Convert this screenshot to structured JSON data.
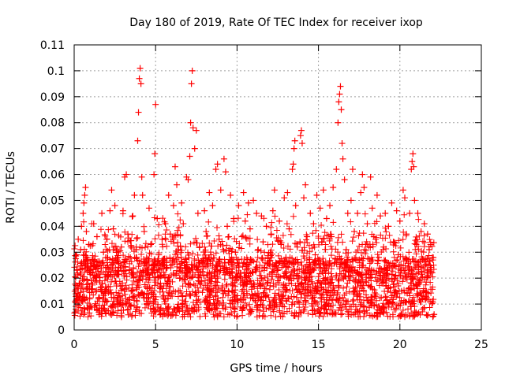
{
  "chart_data": {
    "type": "scatter",
    "title": "Day 180 of 2019, Rate Of TEC Index for receiver ixop",
    "xlabel": "GPS time / hours",
    "ylabel": "ROTI / TECUs",
    "xlim": [
      0,
      25
    ],
    "ylim": [
      0,
      0.11
    ],
    "x_ticks": [
      0,
      5,
      10,
      15,
      20,
      25
    ],
    "y_ticks": [
      0,
      0.01,
      0.02,
      0.03,
      0.04,
      0.05,
      0.06,
      0.07,
      0.08,
      0.09,
      0.1,
      0.11
    ],
    "grid": true,
    "legend": "none",
    "marker": "plus",
    "series_color": "#ff0000",
    "points": [
      [
        0.1,
        0.008
      ],
      [
        0.15,
        0.029
      ],
      [
        0.2,
        0.022
      ],
      [
        0.25,
        0.035
      ],
      [
        0.3,
        0.013
      ],
      [
        0.35,
        0.018
      ],
      [
        0.4,
        0.031
      ],
      [
        0.45,
        0.04
      ],
      [
        0.5,
        0.011
      ],
      [
        0.55,
        0.045
      ],
      [
        0.6,
        0.049
      ],
      [
        0.65,
        0.052
      ],
      [
        0.7,
        0.055
      ],
      [
        0.75,
        0.038
      ],
      [
        0.8,
        0.016
      ],
      [
        0.85,
        0.024
      ],
      [
        0.9,
        0.033
      ],
      [
        1.0,
        0.009
      ],
      [
        1.1,
        0.027
      ],
      [
        1.2,
        0.041
      ],
      [
        1.3,
        0.019
      ],
      [
        1.4,
        0.036
      ],
      [
        1.5,
        0.012
      ],
      [
        1.6,
        0.025
      ],
      [
        1.7,
        0.045
      ],
      [
        1.8,
        0.03
      ],
      [
        1.9,
        0.014
      ],
      [
        2.0,
        0.035
      ],
      [
        2.1,
        0.021
      ],
      [
        2.2,
        0.046
      ],
      [
        2.3,
        0.054
      ],
      [
        2.4,
        0.039
      ],
      [
        2.5,
        0.048
      ],
      [
        2.6,
        0.017
      ],
      [
        2.7,
        0.028
      ],
      [
        2.8,
        0.01
      ],
      [
        2.9,
        0.032
      ],
      [
        3.0,
        0.046
      ],
      [
        3.1,
        0.059
      ],
      [
        3.2,
        0.06
      ],
      [
        3.3,
        0.037
      ],
      [
        3.4,
        0.023
      ],
      [
        3.5,
        0.015
      ],
      [
        3.6,
        0.044
      ],
      [
        3.7,
        0.052
      ],
      [
        3.8,
        0.031
      ],
      [
        3.9,
        0.073
      ],
      [
        3.95,
        0.084
      ],
      [
        4.0,
        0.097
      ],
      [
        4.05,
        0.101
      ],
      [
        4.1,
        0.095
      ],
      [
        4.15,
        0.059
      ],
      [
        4.2,
        0.052
      ],
      [
        4.3,
        0.038
      ],
      [
        4.4,
        0.026
      ],
      [
        4.5,
        0.016
      ],
      [
        4.6,
        0.047
      ],
      [
        4.7,
        0.033
      ],
      [
        4.8,
        0.022
      ],
      [
        4.9,
        0.06
      ],
      [
        4.95,
        0.068
      ],
      [
        5.0,
        0.087
      ],
      [
        5.1,
        0.043
      ],
      [
        5.2,
        0.029
      ],
      [
        5.3,
        0.018
      ],
      [
        5.4,
        0.035
      ],
      [
        5.5,
        0.012
      ],
      [
        5.6,
        0.041
      ],
      [
        5.7,
        0.024
      ],
      [
        5.8,
        0.052
      ],
      [
        5.9,
        0.037
      ],
      [
        6.0,
        0.014
      ],
      [
        6.1,
        0.048
      ],
      [
        6.2,
        0.063
      ],
      [
        6.3,
        0.056
      ],
      [
        6.4,
        0.031
      ],
      [
        6.5,
        0.02
      ],
      [
        6.6,
        0.049
      ],
      [
        6.7,
        0.041
      ],
      [
        6.8,
        0.011
      ],
      [
        6.9,
        0.059
      ],
      [
        7.0,
        0.058
      ],
      [
        7.1,
        0.067
      ],
      [
        7.15,
        0.08
      ],
      [
        7.2,
        0.095
      ],
      [
        7.25,
        0.1
      ],
      [
        7.3,
        0.078
      ],
      [
        7.4,
        0.07
      ],
      [
        7.5,
        0.077
      ],
      [
        7.6,
        0.045
      ],
      [
        7.7,
        0.032
      ],
      [
        7.8,
        0.019
      ],
      [
        7.9,
        0.027
      ],
      [
        8.0,
        0.046
      ],
      [
        8.1,
        0.038
      ],
      [
        8.2,
        0.013
      ],
      [
        8.3,
        0.053
      ],
      [
        8.4,
        0.029
      ],
      [
        8.5,
        0.048
      ],
      [
        8.6,
        0.021
      ],
      [
        8.7,
        0.062
      ],
      [
        8.8,
        0.064
      ],
      [
        8.9,
        0.035
      ],
      [
        9.0,
        0.054
      ],
      [
        9.1,
        0.017
      ],
      [
        9.2,
        0.066
      ],
      [
        9.3,
        0.061
      ],
      [
        9.4,
        0.04
      ],
      [
        9.5,
        0.026
      ],
      [
        9.6,
        0.052
      ],
      [
        9.7,
        0.015
      ],
      [
        9.8,
        0.043
      ],
      [
        9.9,
        0.03
      ],
      [
        10.0,
        0.012
      ],
      [
        10.1,
        0.048
      ],
      [
        10.2,
        0.022
      ],
      [
        10.3,
        0.036
      ],
      [
        10.4,
        0.053
      ],
      [
        10.5,
        0.042
      ],
      [
        10.6,
        0.018
      ],
      [
        10.7,
        0.049
      ],
      [
        10.8,
        0.039
      ],
      [
        10.9,
        0.027
      ],
      [
        11.0,
        0.05
      ],
      [
        11.1,
        0.014
      ],
      [
        11.2,
        0.045
      ],
      [
        11.3,
        0.031
      ],
      [
        11.4,
        0.021
      ],
      [
        11.5,
        0.044
      ],
      [
        11.6,
        0.034
      ],
      [
        11.7,
        0.016
      ],
      [
        11.8,
        0.04
      ],
      [
        11.9,
        0.028
      ],
      [
        12.0,
        0.011
      ],
      [
        12.1,
        0.037
      ],
      [
        12.2,
        0.046
      ],
      [
        12.3,
        0.054
      ],
      [
        12.4,
        0.025
      ],
      [
        12.5,
        0.019
      ],
      [
        12.6,
        0.042
      ],
      [
        12.7,
        0.033
      ],
      [
        12.8,
        0.013
      ],
      [
        12.9,
        0.051
      ],
      [
        13.0,
        0.028
      ],
      [
        13.1,
        0.053
      ],
      [
        13.2,
        0.039
      ],
      [
        13.3,
        0.021
      ],
      [
        13.4,
        0.062
      ],
      [
        13.45,
        0.064
      ],
      [
        13.5,
        0.07
      ],
      [
        13.55,
        0.073
      ],
      [
        13.6,
        0.048
      ],
      [
        13.7,
        0.032
      ],
      [
        13.8,
        0.017
      ],
      [
        13.9,
        0.075
      ],
      [
        13.95,
        0.077
      ],
      [
        14.0,
        0.072
      ],
      [
        14.1,
        0.051
      ],
      [
        14.2,
        0.056
      ],
      [
        14.3,
        0.036
      ],
      [
        14.4,
        0.024
      ],
      [
        14.5,
        0.045
      ],
      [
        14.6,
        0.012
      ],
      [
        14.7,
        0.041
      ],
      [
        14.8,
        0.029
      ],
      [
        14.9,
        0.052
      ],
      [
        15.0,
        0.019
      ],
      [
        15.1,
        0.047
      ],
      [
        15.2,
        0.034
      ],
      [
        15.3,
        0.054
      ],
      [
        15.4,
        0.023
      ],
      [
        15.5,
        0.043
      ],
      [
        15.6,
        0.015
      ],
      [
        15.7,
        0.048
      ],
      [
        15.8,
        0.036
      ],
      [
        15.9,
        0.055
      ],
      [
        16.0,
        0.026
      ],
      [
        16.1,
        0.062
      ],
      [
        16.2,
        0.08
      ],
      [
        16.25,
        0.088
      ],
      [
        16.3,
        0.091
      ],
      [
        16.35,
        0.094
      ],
      [
        16.4,
        0.085
      ],
      [
        16.45,
        0.072
      ],
      [
        16.5,
        0.066
      ],
      [
        16.6,
        0.058
      ],
      [
        16.7,
        0.031
      ],
      [
        16.8,
        0.045
      ],
      [
        16.9,
        0.019
      ],
      [
        17.0,
        0.05
      ],
      [
        17.1,
        0.062
      ],
      [
        17.2,
        0.038
      ],
      [
        17.3,
        0.027
      ],
      [
        17.4,
        0.045
      ],
      [
        17.5,
        0.014
      ],
      [
        17.6,
        0.053
      ],
      [
        17.7,
        0.06
      ],
      [
        17.8,
        0.055
      ],
      [
        17.9,
        0.033
      ],
      [
        18.0,
        0.041
      ],
      [
        18.1,
        0.022
      ],
      [
        18.2,
        0.059
      ],
      [
        18.3,
        0.047
      ],
      [
        18.4,
        0.036
      ],
      [
        18.5,
        0.013
      ],
      [
        18.6,
        0.052
      ],
      [
        18.7,
        0.028
      ],
      [
        18.8,
        0.044
      ],
      [
        18.9,
        0.018
      ],
      [
        19.0,
        0.032
      ],
      [
        19.1,
        0.045
      ],
      [
        19.2,
        0.025
      ],
      [
        19.3,
        0.04
      ],
      [
        19.4,
        0.011
      ],
      [
        19.5,
        0.049
      ],
      [
        19.6,
        0.034
      ],
      [
        19.7,
        0.02
      ],
      [
        19.8,
        0.046
      ],
      [
        19.9,
        0.029
      ],
      [
        20.0,
        0.042
      ],
      [
        20.1,
        0.015
      ],
      [
        20.2,
        0.054
      ],
      [
        20.3,
        0.051
      ],
      [
        20.4,
        0.037
      ],
      [
        20.5,
        0.024
      ],
      [
        20.6,
        0.045
      ],
      [
        20.7,
        0.062
      ],
      [
        20.75,
        0.065
      ],
      [
        20.8,
        0.068
      ],
      [
        20.85,
        0.063
      ],
      [
        20.9,
        0.05
      ],
      [
        21.0,
        0.033
      ],
      [
        21.1,
        0.045
      ],
      [
        21.2,
        0.019
      ],
      [
        21.3,
        0.038
      ],
      [
        21.4,
        0.027
      ],
      [
        21.5,
        0.041
      ],
      [
        21.6,
        0.013
      ],
      [
        21.7,
        0.037
      ],
      [
        21.8,
        0.031
      ],
      [
        21.9,
        0.022
      ],
      [
        22.0,
        0.028
      ],
      [
        22.1,
        0.006
      ]
    ]
  }
}
